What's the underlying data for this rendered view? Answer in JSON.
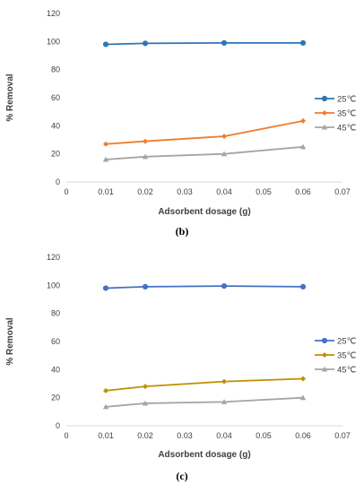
{
  "chart_data": [
    {
      "type": "line",
      "panel_label": "(b)",
      "title": "",
      "xlabel": "Adsorbent dosage (g)",
      "ylabel": "% Removal",
      "xlim": [
        0,
        0.07
      ],
      "ylim": [
        0,
        120
      ],
      "x_ticks": [
        "0",
        "0.01",
        "0.02",
        "0.03",
        "0.04",
        "0.05",
        "0.06",
        "0.07"
      ],
      "y_ticks": [
        "0",
        "20",
        "40",
        "60",
        "80",
        "100",
        "120"
      ],
      "grid": false,
      "legend_position": "right",
      "x": [
        0.01,
        0.02,
        0.04,
        0.06
      ],
      "series": [
        {
          "name": "25℃",
          "values": [
            98,
            98.7,
            99,
            99
          ],
          "color": "#2E75B6",
          "marker": "circle"
        },
        {
          "name": "35℃",
          "values": [
            27,
            29,
            32.5,
            43.5
          ],
          "color": "#ED7D31",
          "marker": "diamond"
        },
        {
          "name": "45℃",
          "values": [
            16,
            18,
            20,
            25
          ],
          "color": "#A5A5A5",
          "marker": "triangle"
        }
      ]
    },
    {
      "type": "line",
      "panel_label": "(c)",
      "title": "",
      "xlabel": "Adsorbent dosage (g)",
      "ylabel": "% Removal",
      "xlim": [
        0,
        0.07
      ],
      "ylim": [
        0,
        120
      ],
      "x_ticks": [
        "0",
        "0.01",
        "0.02",
        "0.03",
        "0.04",
        "0.05",
        "0.06",
        "0.07"
      ],
      "y_ticks": [
        "0",
        "20",
        "40",
        "60",
        "80",
        "100",
        "120"
      ],
      "grid": false,
      "legend_position": "right",
      "x": [
        0.01,
        0.02,
        0.04,
        0.06
      ],
      "series": [
        {
          "name": "25℃",
          "values": [
            98,
            99,
            99.5,
            99
          ],
          "color": "#4472C4",
          "marker": "circle"
        },
        {
          "name": "35℃",
          "values": [
            25,
            28,
            31.5,
            33.5
          ],
          "color": "#BF9000",
          "marker": "diamond"
        },
        {
          "name": "45℃",
          "values": [
            13.5,
            16,
            17,
            20
          ],
          "color": "#A5A5A5",
          "marker": "triangle"
        }
      ]
    }
  ]
}
